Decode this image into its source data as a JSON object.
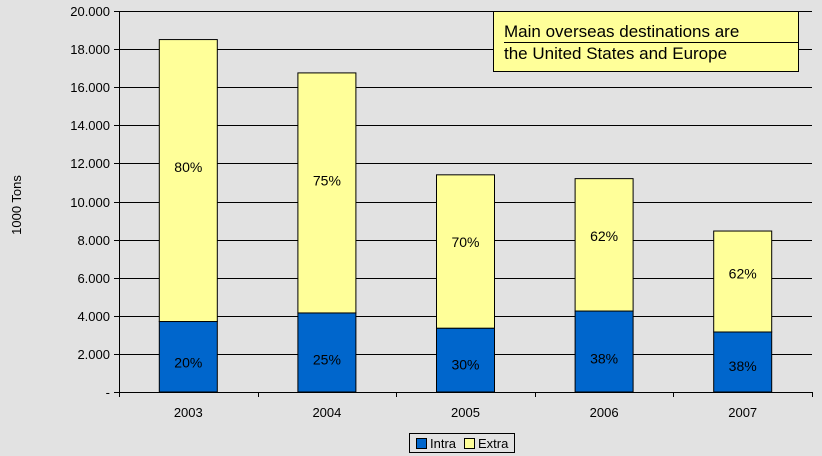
{
  "chart_data": {
    "type": "bar",
    "stacked": true,
    "ylabel": "1000 Tons",
    "ylim": [
      0,
      20000
    ],
    "ytick_values": [
      0,
      2000,
      4000,
      6000,
      8000,
      10000,
      12000,
      14000,
      16000,
      18000,
      20000
    ],
    "ytick_labels": [
      "-",
      "2.000",
      "4.000",
      "6.000",
      "8.000",
      "10.000",
      "12.000",
      "14.000",
      "16.000",
      "18.000",
      "20.000"
    ],
    "categories": [
      "2003",
      "2004",
      "2005",
      "2006",
      "2007"
    ],
    "series": [
      {
        "name": "Intra",
        "color": "#0066cc",
        "values": [
          3700,
          4150,
          3350,
          4250,
          3150
        ],
        "labels": [
          "20%",
          "25%",
          "30%",
          "38%",
          "38%"
        ]
      },
      {
        "name": "Extra",
        "color": "#ffff99",
        "values": [
          14800,
          12600,
          8050,
          6950,
          5300
        ],
        "labels": [
          "80%",
          "75%",
          "70%",
          "62%",
          "62%"
        ]
      }
    ],
    "grid": true,
    "legend": "bottom"
  },
  "annotation": {
    "line1": "Main overseas destinations are",
    "line2": "the United States and Europe"
  },
  "legend": {
    "intra_label": "Intra",
    "extra_label": "Extra",
    "intra_color": "#0066cc",
    "extra_color": "#ffff99"
  }
}
